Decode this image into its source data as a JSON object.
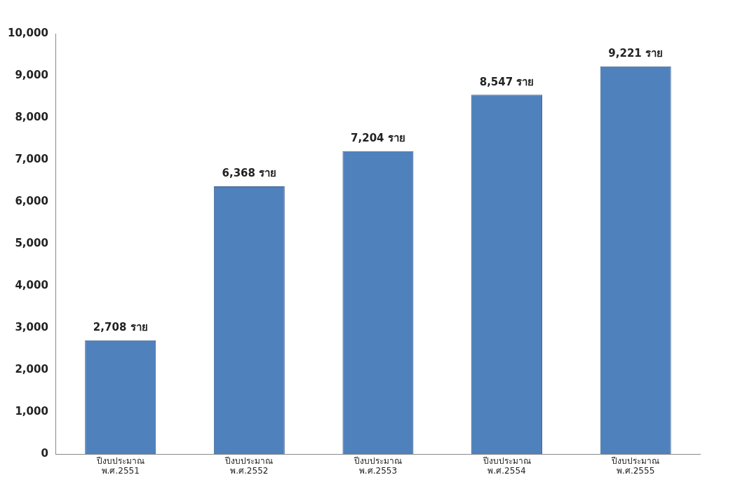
{
  "chart_data": {
    "type": "bar",
    "categories": [
      "ปีงบประมาณ\nพ.ศ.2551",
      "ปีงบประมาณ\nพ.ศ.2552",
      "ปีงบประมาณ\nพ.ศ.2553",
      "ปีงบประมาณ\nพ.ศ.2554",
      "ปีงบประมาณ\nพ.ศ.2555"
    ],
    "values": [
      2708,
      6368,
      7204,
      8547,
      9221
    ],
    "value_labels": [
      "2,708 ราย",
      "6,368 ราย",
      "7,204 ราย",
      "8,547 ราย",
      "9,221 ราย"
    ],
    "color": "#4f81bd",
    "ylim": [
      0,
      10000
    ],
    "yticks": [
      {
        "value": 0,
        "label": "0"
      },
      {
        "value": 1000,
        "label": "1,000"
      },
      {
        "value": 2000,
        "label": "2,000"
      },
      {
        "value": 3000,
        "label": "3,000"
      },
      {
        "value": 4000,
        "label": "4,000"
      },
      {
        "value": 5000,
        "label": "5,000"
      },
      {
        "value": 6000,
        "label": "6,000"
      },
      {
        "value": 7000,
        "label": "7,000"
      },
      {
        "value": 8000,
        "label": "8,000"
      },
      {
        "value": 9000,
        "label": "9,000"
      },
      {
        "value": 10000,
        "label": "10,000"
      }
    ],
    "grid": false,
    "legend": false
  }
}
